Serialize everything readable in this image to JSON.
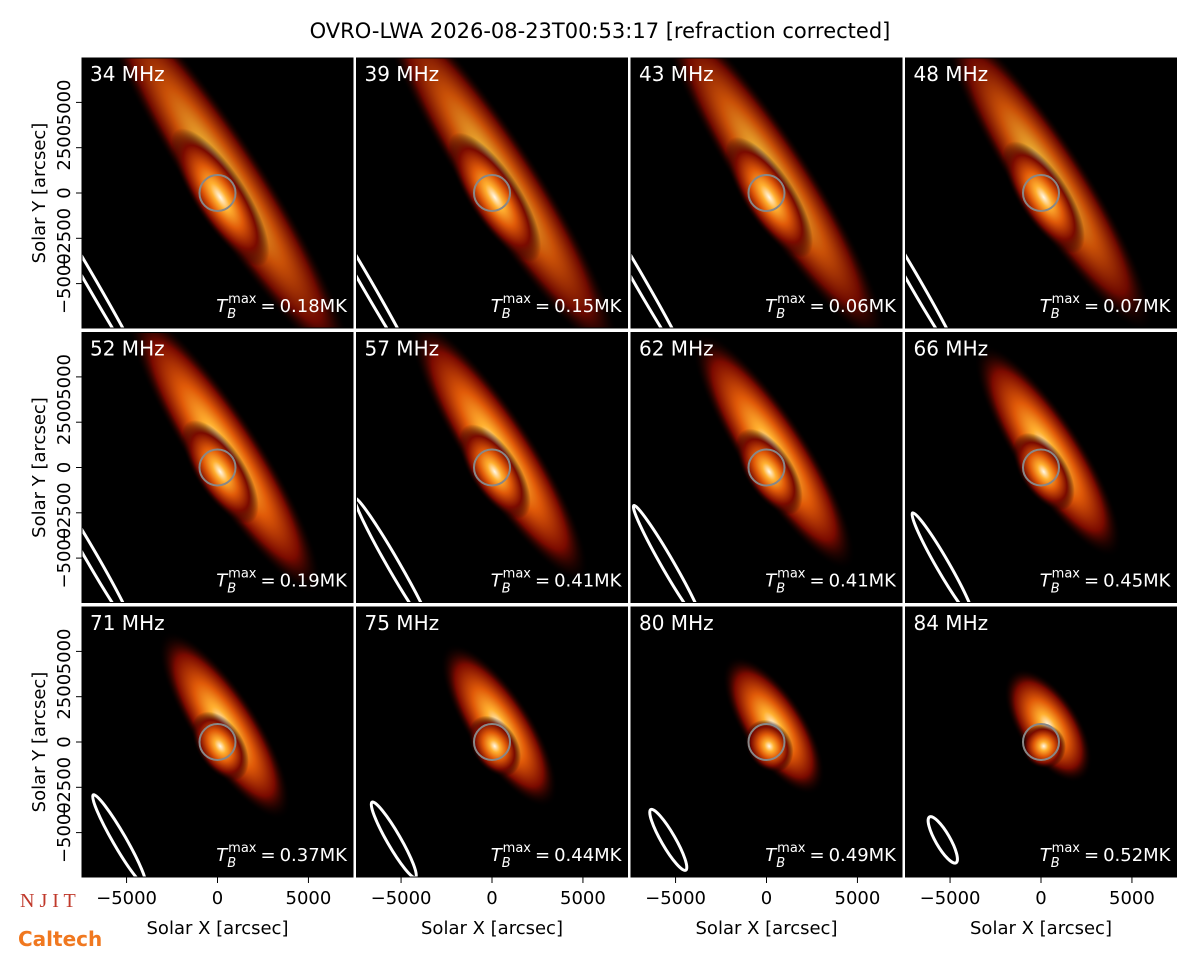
{
  "title": "OVRO-LWA 2026-08-23T00:53:17 [refraction corrected]",
  "annotation_symbol": {
    "base": "T",
    "sub": "B",
    "sup": "max",
    "eq": "="
  },
  "logos": [
    "N J I T",
    "Caltech"
  ],
  "chart_data": [
    {
      "type": "image",
      "title": "34 MHz",
      "annotation": "0.18MK",
      "xlim": [
        -7450,
        7450
      ],
      "ylim": [
        -7450,
        7450
      ],
      "ylabel": "Solar Y [arcsec]",
      "yticks": [
        {
          "value": -5000,
          "label": "−5000"
        },
        {
          "value": -2500,
          "label": "−2500"
        },
        0,
        2500,
        5000
      ]
    },
    {
      "type": "image",
      "title": "39 MHz",
      "annotation": "0.15MK",
      "xlim": [
        -7450,
        7450
      ],
      "ylim": [
        -7450,
        7450
      ]
    },
    {
      "type": "image",
      "title": "43 MHz",
      "annotation": "0.06MK",
      "xlim": [
        -7450,
        7450
      ],
      "ylim": [
        -7450,
        7450
      ]
    },
    {
      "type": "image",
      "title": "48 MHz",
      "annotation": "0.07MK",
      "xlim": [
        -7450,
        7450
      ],
      "ylim": [
        -7450,
        7450
      ]
    },
    {
      "type": "image",
      "title": "52 MHz",
      "annotation": "0.19MK",
      "xlim": [
        -7450,
        7450
      ],
      "ylim": [
        -7450,
        7450
      ],
      "ylabel": "Solar Y [arcsec]",
      "yticks": [
        {
          "value": -5000,
          "label": "−5000"
        },
        {
          "value": -2500,
          "label": "−2500"
        },
        0,
        2500,
        5000
      ]
    },
    {
      "type": "image",
      "title": "57 MHz",
      "annotation": "0.41MK",
      "xlim": [
        -7450,
        7450
      ],
      "ylim": [
        -7450,
        7450
      ]
    },
    {
      "type": "image",
      "title": "62 MHz",
      "annotation": "0.41MK",
      "xlim": [
        -7450,
        7450
      ],
      "ylim": [
        -7450,
        7450
      ]
    },
    {
      "type": "image",
      "title": "66 MHz",
      "annotation": "0.45MK",
      "xlim": [
        -7450,
        7450
      ],
      "ylim": [
        -7450,
        7450
      ]
    },
    {
      "type": "image",
      "title": "71 MHz",
      "annotation": "0.37MK",
      "xlim": [
        -7450,
        7450
      ],
      "ylim": [
        -7450,
        7450
      ],
      "ylabel": "Solar Y [arcsec]",
      "yticks": [
        {
          "value": -5000,
          "label": "−5000"
        },
        {
          "value": -2500,
          "label": "−2500"
        },
        0,
        2500,
        5000
      ],
      "xlabel": "Solar X [arcsec]",
      "xticks": [
        {
          "value": -5000,
          "label": "−5000"
        },
        0,
        5000
      ]
    },
    {
      "type": "image",
      "title": "75 MHz",
      "annotation": "0.44MK",
      "xlim": [
        -7450,
        7450
      ],
      "ylim": [
        -7450,
        7450
      ],
      "xlabel": "Solar X [arcsec]",
      "xticks": [
        {
          "value": -5000,
          "label": "−5000"
        },
        0,
        5000
      ]
    },
    {
      "type": "image",
      "title": "80 MHz",
      "annotation": "0.49MK",
      "xlim": [
        -7450,
        7450
      ],
      "ylim": [
        -7450,
        7450
      ],
      "xlabel": "Solar X [arcsec]",
      "xticks": [
        {
          "value": -5000,
          "label": "−5000"
        },
        0,
        5000
      ]
    },
    {
      "type": "image",
      "title": "84 MHz",
      "annotation": "0.52MK",
      "xlim": [
        -7450,
        7450
      ],
      "ylim": [
        -7450,
        7450
      ],
      "xlabel": "Solar X [arcsec]",
      "xticks": [
        {
          "value": -5000,
          "label": "−5000"
        },
        0,
        5000
      ]
    }
  ]
}
